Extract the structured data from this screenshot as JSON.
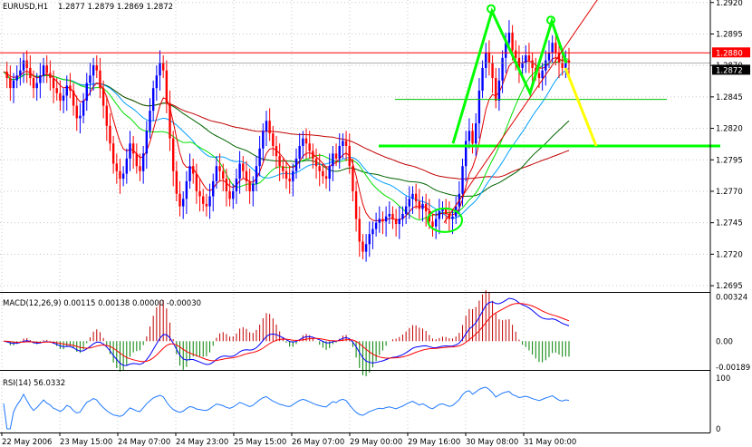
{
  "chart_data": {
    "type": "candlestick",
    "symbol_header": "EURUSD,H1",
    "ohlc_header": "1.2877 1.2879 1.2869 1.2872",
    "colors": {
      "background": "#ffffff",
      "bull": "#0000ff",
      "bear": "#ff0000",
      "grid": "#c8c8c8",
      "ma_fast": "#00e000",
      "ma_mid": "#00a0ff",
      "ma_slow": "#006400",
      "ma_long": "#c00000",
      "pattern": "#00ff00",
      "projection": "#ffff00",
      "macd_line": "#0000ff",
      "signal_line": "#ff0000",
      "rsi_line": "#1e78ff",
      "resistance": "#ff0000"
    },
    "price_axis": {
      "ticks": [
        "1.2920",
        "1.2895",
        "1.2870",
        "1.2845",
        "1.2820",
        "1.2795",
        "1.2770",
        "1.2745",
        "1.2720",
        "1.2695"
      ],
      "ylim": [
        1.269,
        1.2922
      ],
      "resistance_label": "1.2880",
      "current_label": "1.2872"
    },
    "time_axis": {
      "labels": [
        "22 May 2006",
        "23 May 15:00",
        "24 May 07:00",
        "24 May 23:00",
        "25 May 15:00",
        "26 May 07:00",
        "29 May 00:00",
        "29 May 16:00",
        "30 May 08:00",
        "31 May 00:00"
      ]
    },
    "indicators": {
      "macd_label": "MACD(12,26,9) 0.00115 0.00138 0.00000 -0.00030",
      "macd_ticks": [
        "0.00324",
        "0.00",
        "-0.00189"
      ],
      "macd_ylim": [
        -0.0021,
        0.0034
      ],
      "rsi_label": "RSI(14) 56.0332",
      "rsi_ticks": [
        "100",
        "0"
      ],
      "rsi_ylim": [
        0,
        100
      ]
    },
    "prices": [
      1.2865,
      1.286,
      1.2852,
      1.2858,
      1.2862,
      1.2866,
      1.2874,
      1.2868,
      1.286,
      1.2852,
      1.2856,
      1.2862,
      1.287,
      1.2864,
      1.286,
      1.2852,
      1.2848,
      1.2842,
      1.2846,
      1.2854,
      1.285,
      1.2838,
      1.2828,
      1.283,
      1.2842,
      1.2856,
      1.2862,
      1.287,
      1.2866,
      1.2852,
      1.2838,
      1.2822,
      1.2808,
      1.2792,
      1.2786,
      1.278,
      1.2784,
      1.2796,
      1.2808,
      1.28,
      1.279,
      1.2786,
      1.28,
      1.2818,
      1.2834,
      1.2852,
      1.2862,
      1.2872,
      1.2866,
      1.284,
      1.2812,
      1.2786,
      1.2768,
      1.2758,
      1.2764,
      1.2778,
      1.279,
      1.2784,
      1.277,
      1.2766,
      1.276,
      1.2758,
      1.2766,
      1.2778,
      1.279,
      1.2786,
      1.278,
      1.277,
      1.2764,
      1.277,
      1.278,
      1.2792,
      1.2786,
      1.2778,
      1.277,
      1.2776,
      1.279,
      1.2804,
      1.2818,
      1.2826,
      1.2816,
      1.2806,
      1.2798,
      1.279,
      1.2786,
      1.278,
      1.2778,
      1.2786,
      1.2796,
      1.2806,
      1.2812,
      1.2808,
      1.2802,
      1.2796,
      1.279,
      1.2786,
      1.2782,
      1.278,
      1.279,
      1.28,
      1.2796,
      1.2806,
      1.281,
      1.2806,
      1.279,
      1.277,
      1.2748,
      1.273,
      1.2722,
      1.2728,
      1.2736,
      1.274,
      1.2745,
      1.2748,
      1.2746,
      1.275,
      1.2752,
      1.2748,
      1.2744,
      1.2748,
      1.2752,
      1.2758,
      1.2764,
      1.2768,
      1.2762,
      1.2756,
      1.276,
      1.2754,
      1.2746,
      1.2742,
      1.2748,
      1.2754,
      1.2756,
      1.2752,
      1.2748,
      1.275,
      1.2758,
      1.2768,
      1.279,
      1.281,
      1.2818,
      1.2808,
      1.2824,
      1.285,
      1.2868,
      1.288,
      1.2872,
      1.286,
      1.2842,
      1.2858,
      1.2876,
      1.2888,
      1.2896,
      1.2882,
      1.2876,
      1.2868,
      1.2872,
      1.2878,
      1.2874,
      1.2868,
      1.2864,
      1.286,
      1.2866,
      1.2874,
      1.288,
      1.2888,
      1.288,
      1.2872,
      1.2868,
      1.2874,
      1.2872
    ]
  }
}
